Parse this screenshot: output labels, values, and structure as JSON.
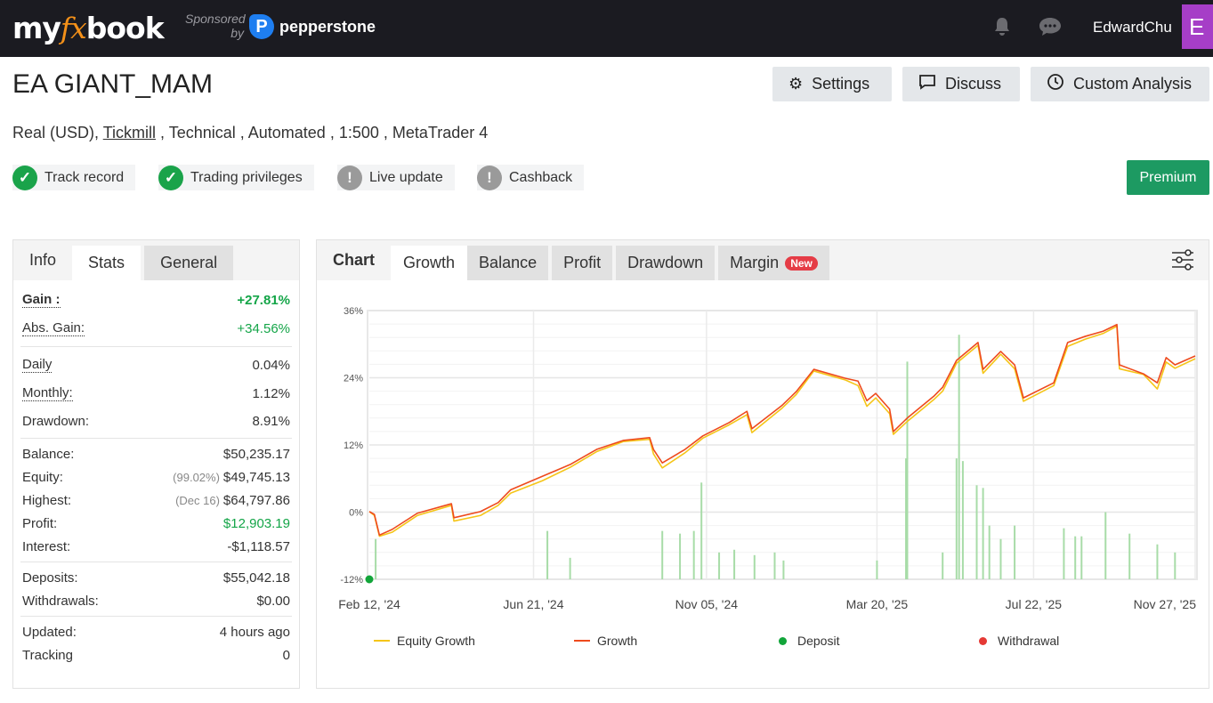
{
  "nav": {
    "logo": {
      "my": "my",
      "fx": "fx",
      "book": "book"
    },
    "sponsored": "Sponsored",
    "by": "by",
    "sponsor_name": "pepperstone",
    "sponsor_icon": "P",
    "username": "EdwardChu",
    "avatar_letter": "E",
    "icons": [
      "bell-icon",
      "chat-icon"
    ]
  },
  "header": {
    "title": "EA GIANT_MAM",
    "buttons": {
      "settings": "Settings",
      "discuss": "Discuss",
      "custom_analysis": "Custom Analysis"
    },
    "subtitle": {
      "type": "Real (USD),",
      "broker": "Tickmill",
      "rest": " , Technical , Automated , 1:500 , MetaTrader 4"
    },
    "badges": [
      {
        "label": "Track record",
        "status": "verified",
        "color": "#1aa34a"
      },
      {
        "label": "Trading privileges",
        "status": "verified",
        "color": "#1aa34a"
      },
      {
        "label": "Live update",
        "status": "unverified",
        "color": "#9a9a9a"
      },
      {
        "label": "Cashback",
        "status": "unverified",
        "color": "#9a9a9a"
      }
    ],
    "premium": "Premium"
  },
  "stats": {
    "tabs": [
      "Info",
      "Stats",
      "General"
    ],
    "active_tab": "Stats",
    "gain": {
      "label": "Gain :",
      "value": "+27.81%"
    },
    "abs_gain": {
      "label": "Abs. Gain:",
      "value": "+34.56%"
    },
    "daily": {
      "label": "Daily",
      "value": "0.04%"
    },
    "monthly": {
      "label": "Monthly:",
      "value": "1.12%"
    },
    "drawdown": {
      "label": "Drawdown:",
      "value": "8.91%"
    },
    "balance": {
      "label": "Balance:",
      "value": "$50,235.17"
    },
    "equity": {
      "label": "Equity:",
      "note": "(99.02%)",
      "value": "$49,745.13"
    },
    "highest": {
      "label": "Highest:",
      "note": "(Dec 16)",
      "value": "$64,797.86"
    },
    "profit": {
      "label": "Profit:",
      "value": "$12,903.19"
    },
    "interest": {
      "label": "Interest:",
      "value": "-$1,118.57"
    },
    "deposits": {
      "label": "Deposits:",
      "value": "$55,042.18"
    },
    "withdrawals": {
      "label": "Withdrawals:",
      "value": "$0.00"
    },
    "updated": {
      "label": "Updated:",
      "value": "4 hours ago"
    },
    "tracking": {
      "label": "Tracking",
      "value": "0"
    }
  },
  "chart_panel": {
    "tabs": [
      "Chart",
      "Growth",
      "Balance",
      "Profit",
      "Drawdown",
      "Margin"
    ],
    "active_tab": "Growth",
    "new_badge": "New",
    "settings_icon": "sliders-icon"
  },
  "chart_data": {
    "type": "line",
    "grid": true,
    "legend_placement": "bottom",
    "ylim": [
      -12,
      36
    ],
    "yticks": [
      "36%",
      "24%",
      "12%",
      "0%",
      "-12%"
    ],
    "ytick_values": [
      36,
      24,
      12,
      0,
      -12
    ],
    "xlim": [
      "2024-02-12",
      "2025-11-27"
    ],
    "xticks": [
      {
        "date": "2024-02-12",
        "label": "Feb 12, '24"
      },
      {
        "date": "2024-06-21",
        "label": "Jun 21, '24"
      },
      {
        "date": "2024-11-05",
        "label": "Nov 05, '24"
      },
      {
        "date": "2025-03-20",
        "label": "Mar 20, '25"
      },
      {
        "date": "2025-07-22",
        "label": "Jul 22, '25"
      },
      {
        "date": "2025-11-27",
        "label": "Nov 27, '25"
      }
    ],
    "dates": [
      "2024-02-12",
      "2024-02-16",
      "2024-02-20",
      "2024-03-01",
      "2024-03-21",
      "2024-04-17",
      "2024-04-19",
      "2024-05-10",
      "2024-05-24",
      "2024-06-03",
      "2024-06-28",
      "2024-07-20",
      "2024-08-10",
      "2024-08-31",
      "2024-09-21",
      "2024-09-24",
      "2024-10-01",
      "2024-10-19",
      "2024-11-02",
      "2024-11-23",
      "2024-12-07",
      "2024-12-11",
      "2025-01-04",
      "2025-01-15",
      "2025-01-29",
      "2025-02-23",
      "2025-03-05",
      "2025-03-12",
      "2025-03-19",
      "2025-03-30",
      "2025-04-02",
      "2025-04-13",
      "2025-05-04",
      "2025-05-11",
      "2025-05-22",
      "2025-06-08",
      "2025-06-12",
      "2025-06-26",
      "2025-07-07",
      "2025-07-14",
      "2025-08-07",
      "2025-08-18",
      "2025-09-01",
      "2025-09-15",
      "2025-09-26",
      "2025-09-28",
      "2025-10-17",
      "2025-10-28",
      "2025-11-04",
      "2025-11-11",
      "2025-11-27"
    ],
    "series": [
      {
        "name": "Equity Growth",
        "color": "#f5c518",
        "values": [
          0.1,
          -0.6,
          -4.3,
          -3.6,
          -0.6,
          1.2,
          -1.6,
          -0.6,
          1.2,
          3.4,
          5.6,
          8.0,
          10.8,
          12.6,
          13.0,
          10.4,
          7.9,
          10.6,
          13.2,
          15.6,
          17.4,
          14.2,
          18.6,
          21.0,
          25.2,
          23.6,
          22.6,
          18.9,
          20.4,
          17.6,
          13.9,
          16.2,
          20.1,
          21.6,
          26.6,
          29.8,
          24.8,
          28.2,
          25.6,
          19.8,
          22.6,
          29.6,
          30.9,
          31.9,
          33.2,
          25.6,
          24.6,
          22.0,
          26.8,
          25.7,
          27.4
        ]
      },
      {
        "name": "Growth",
        "color": "#ee4a1d",
        "values": [
          0.1,
          -0.4,
          -4.1,
          -3.1,
          -0.2,
          1.5,
          -1.0,
          0.1,
          1.7,
          4.0,
          6.4,
          8.5,
          11.2,
          12.8,
          13.3,
          11.2,
          8.8,
          11.2,
          13.6,
          16.0,
          18.0,
          14.9,
          19.1,
          21.5,
          25.5,
          23.9,
          23.4,
          19.9,
          21.2,
          18.4,
          14.4,
          16.8,
          20.7,
          22.3,
          27.1,
          30.3,
          25.5,
          28.7,
          26.3,
          20.4,
          23.1,
          30.3,
          31.4,
          32.3,
          33.5,
          26.3,
          24.7,
          23.1,
          27.6,
          26.3,
          27.9
        ]
      },
      {
        "name": "Deposit",
        "color": "#12a53a",
        "marker_dates": [
          "2024-02-12"
        ]
      },
      {
        "name": "Withdrawal",
        "color": "#e53935",
        "marker_dates": []
      }
    ],
    "activity_bars": {
      "color": "#a8dca8",
      "dates": [
        "2024-02-17",
        "2024-07-02",
        "2024-07-20",
        "2024-10-01",
        "2024-10-15",
        "2024-10-26",
        "2024-11-01",
        "2024-11-15",
        "2024-11-27",
        "2024-12-13",
        "2024-12-29",
        "2025-01-05",
        "2025-03-20",
        "2025-04-12",
        "2025-04-13",
        "2025-05-11",
        "2025-05-22",
        "2025-05-24",
        "2025-05-27",
        "2025-06-07",
        "2025-06-12",
        "2025-06-17",
        "2025-06-26",
        "2025-07-07",
        "2025-08-15",
        "2025-08-24",
        "2025-08-29",
        "2025-09-17",
        "2025-10-06",
        "2025-10-28",
        "2025-11-11"
      ],
      "levels": [
        0.15,
        0.18,
        0.08,
        0.18,
        0.17,
        0.18,
        0.36,
        0.1,
        0.11,
        0.09,
        0.1,
        0.07,
        0.07,
        0.45,
        0.81,
        0.1,
        0.45,
        0.91,
        0.44,
        0.35,
        0.34,
        0.2,
        0.15,
        0.2,
        0.19,
        0.16,
        0.16,
        0.25,
        0.17,
        0.13,
        0.1
      ]
    }
  }
}
